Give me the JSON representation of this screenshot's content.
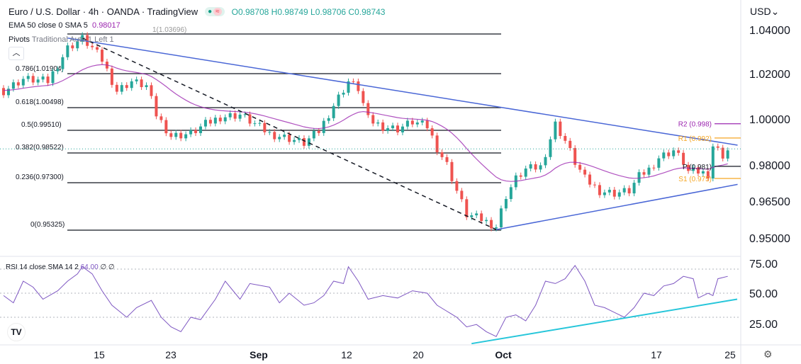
{
  "header": {
    "title": "Euro / U.S. Dollar · 4h · OANDA · TradingView",
    "ohlc": "O0.98708 H0.98749 L0.98706 C0.98743",
    "currency": "USD"
  },
  "indicators": {
    "ema": {
      "label": "EMA 50 close 0 SMA 5",
      "value": "0.98017"
    },
    "pivots": {
      "label": "Pivots",
      "settings": "Traditional Auto 1 Left 1"
    },
    "rsi": {
      "label": "RSI 14 close SMA 14 2",
      "value": "64.00",
      "extra": "∅ ∅"
    }
  },
  "colors": {
    "up": "#26a69a",
    "down": "#ef5350",
    "ema": "#9c27b0",
    "trend": "#4a67d6",
    "rsi": "#7e57c2",
    "rsi_trend": "#26c6da",
    "r2": "#9c27b0",
    "r1": "#f5a623",
    "p": "#131722",
    "s1": "#f5a623"
  },
  "icons": {
    "collapse": "chevron-up-icon",
    "settings": "gear-icon",
    "logo": "tradingview-logo"
  },
  "chart_data": [
    {
      "type": "candlestick",
      "title": "Euro / U.S. Dollar · 4h",
      "ylabel": "USD",
      "ylim": [
        0.945,
        1.045
      ],
      "y_ticks": [
        "1.04000",
        "1.02000",
        "1.00000",
        "0.98000",
        "0.96500",
        "0.95000"
      ],
      "x_ticks": [
        "15",
        "23",
        "Sep",
        "12",
        "20",
        "Oct",
        "17",
        "25"
      ],
      "close_by_bar": [
        [
          0,
          1.012
        ],
        [
          4,
          1.017
        ],
        [
          9,
          1.016
        ],
        [
          13,
          1.03
        ],
        [
          16,
          1.034
        ],
        [
          18,
          1.03
        ],
        [
          20,
          1.025
        ],
        [
          23,
          1.012
        ],
        [
          26,
          1.016
        ],
        [
          29,
          1.014
        ],
        [
          31,
          1.002
        ],
        [
          34,
          0.993
        ],
        [
          38,
          0.994
        ],
        [
          41,
          0.998
        ],
        [
          44,
          1.001
        ],
        [
          48,
          1.002
        ],
        [
          51,
          0.998
        ],
        [
          54,
          0.994
        ],
        [
          58,
          0.992
        ],
        [
          61,
          0.99
        ],
        [
          64,
          0.995
        ],
        [
          67,
          1.006
        ],
        [
          70,
          1.016
        ],
        [
          72,
          1.013
        ],
        [
          74,
          1.0
        ],
        [
          77,
          0.997
        ],
        [
          80,
          0.996
        ],
        [
          83,
          0.999
        ],
        [
          86,
          0.997
        ],
        [
          88,
          0.988
        ],
        [
          90,
          0.981
        ],
        [
          92,
          0.97
        ],
        [
          94,
          0.96
        ],
        [
          97,
          0.958
        ],
        [
          100,
          0.955
        ],
        [
          102,
          0.968
        ],
        [
          104,
          0.975
        ],
        [
          106,
          0.979
        ],
        [
          109,
          0.98
        ],
        [
          111,
          0.992
        ],
        [
          112,
          0.998
        ],
        [
          114,
          0.991
        ],
        [
          116,
          0.982
        ],
        [
          118,
          0.975
        ],
        [
          121,
          0.97
        ],
        [
          124,
          0.969
        ],
        [
          127,
          0.97
        ],
        [
          129,
          0.976
        ],
        [
          131,
          0.979
        ],
        [
          133,
          0.984
        ],
        [
          136,
          0.987
        ],
        [
          138,
          0.982
        ],
        [
          139,
          0.978
        ],
        [
          141,
          0.978
        ],
        [
          143,
          0.977
        ],
        [
          144,
          0.989
        ],
        [
          146,
          0.985
        ],
        [
          147,
          0.987
        ]
      ],
      "fibonacci": [
        {
          "level": "1",
          "value": "1.03696"
        },
        {
          "level": "0.786",
          "value": "1.01904"
        },
        {
          "level": "0.618",
          "value": "1.00498"
        },
        {
          "level": "0.5",
          "value": "0.99510"
        },
        {
          "level": "0.382",
          "value": "0.98522"
        },
        {
          "level": "0.236",
          "value": "0.97300"
        },
        {
          "level": "0",
          "value": "0.95325"
        }
      ],
      "pivots": [
        {
          "name": "R2",
          "value": "0.998"
        },
        {
          "name": "R1",
          "value": "0.992"
        },
        {
          "name": "P",
          "value": "0.981"
        },
        {
          "name": "S1",
          "value": "0.975"
        }
      ],
      "trendlines": [
        {
          "from": [
            13,
            1.034
          ],
          "to": [
            149,
            0.989
          ]
        },
        {
          "from": [
            100,
            0.9535
          ],
          "to": [
            149,
            0.9725
          ]
        },
        {
          "from": [
            16,
            1.034
          ],
          "to": [
            100,
            0.9535
          ],
          "style": "dashed"
        }
      ]
    },
    {
      "type": "line",
      "title": "RSI 14",
      "ylim": [
        10,
        80
      ],
      "y_ticks": [
        "75.00",
        "50.00",
        "25.00"
      ],
      "bands": [
        70,
        50,
        30
      ],
      "rsi_by_bar": [
        [
          0,
          48
        ],
        [
          2,
          42
        ],
        [
          4,
          60
        ],
        [
          6,
          55
        ],
        [
          8,
          45
        ],
        [
          11,
          52
        ],
        [
          13,
          60
        ],
        [
          15,
          66
        ],
        [
          16,
          72
        ],
        [
          18,
          66
        ],
        [
          20,
          52
        ],
        [
          22,
          40
        ],
        [
          25,
          30
        ],
        [
          27,
          38
        ],
        [
          30,
          44
        ],
        [
          32,
          30
        ],
        [
          34,
          22
        ],
        [
          36,
          18
        ],
        [
          38,
          30
        ],
        [
          40,
          28
        ],
        [
          43,
          45
        ],
        [
          45,
          60
        ],
        [
          48,
          45
        ],
        [
          50,
          58
        ],
        [
          54,
          55
        ],
        [
          56,
          42
        ],
        [
          58,
          50
        ],
        [
          61,
          40
        ],
        [
          63,
          42
        ],
        [
          65,
          48
        ],
        [
          67,
          60
        ],
        [
          69,
          58
        ],
        [
          70,
          72
        ],
        [
          72,
          60
        ],
        [
          74,
          45
        ],
        [
          77,
          48
        ],
        [
          80,
          46
        ],
        [
          83,
          52
        ],
        [
          86,
          50
        ],
        [
          88,
          40
        ],
        [
          90,
          35
        ],
        [
          92,
          30
        ],
        [
          94,
          22
        ],
        [
          96,
          24
        ],
        [
          98,
          18
        ],
        [
          100,
          14
        ],
        [
          102,
          30
        ],
        [
          104,
          32
        ],
        [
          106,
          27
        ],
        [
          108,
          40
        ],
        [
          110,
          60
        ],
        [
          112,
          58
        ],
        [
          114,
          62
        ],
        [
          116,
          73
        ],
        [
          118,
          60
        ],
        [
          120,
          40
        ],
        [
          122,
          38
        ],
        [
          124,
          34
        ],
        [
          126,
          30
        ],
        [
          128,
          38
        ],
        [
          130,
          50
        ],
        [
          132,
          48
        ],
        [
          134,
          56
        ],
        [
          136,
          58
        ],
        [
          138,
          64
        ],
        [
          140,
          62
        ],
        [
          141,
          46
        ],
        [
          143,
          50
        ],
        [
          144,
          48
        ],
        [
          145,
          62
        ],
        [
          147,
          64
        ]
      ],
      "trendline": {
        "from": [
          95,
          14
        ],
        "to": [
          149,
          45
        ]
      }
    }
  ]
}
